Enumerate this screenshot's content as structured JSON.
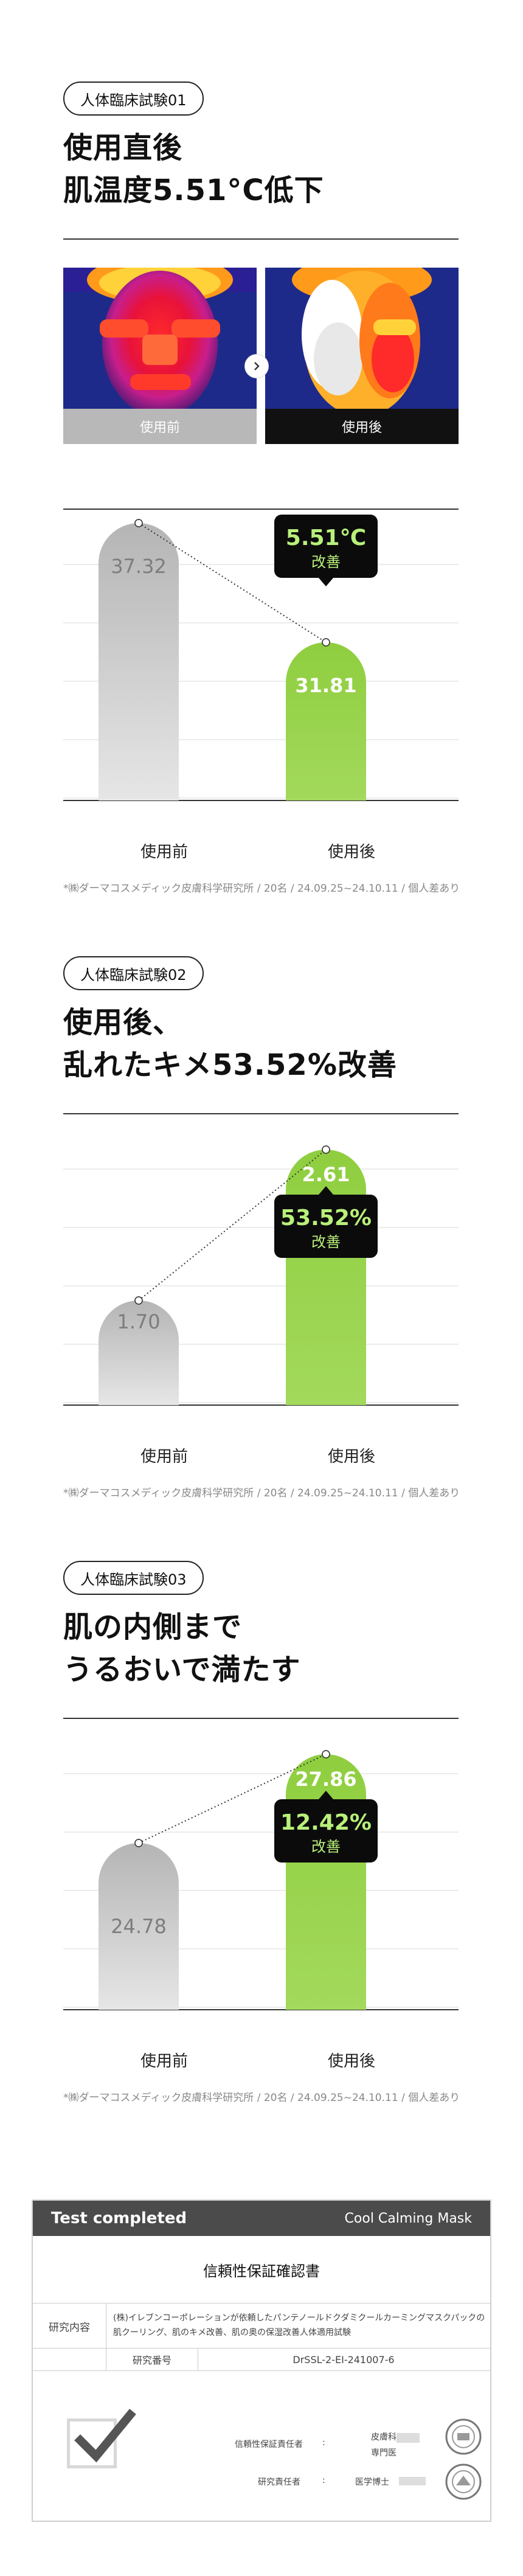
{
  "sections": [
    {
      "badge": "人体臨床試験01",
      "title_lines": [
        "使用直後",
        "肌温度5.51°C低下"
      ],
      "thermal": {
        "before_label": "使用前",
        "after_label": "使用後"
      },
      "chart": {
        "before_value": "37.32",
        "after_value": "31.81",
        "callout_value": "5.51℃",
        "callout_sub": "改善"
      },
      "note": "*㈱ダーマコスメディック皮膚科学研究所 / 20名 / 24.09.25~24.10.11 / 個人差あり"
    },
    {
      "badge": "人体臨床試験02",
      "title_lines": [
        "使用後、",
        "乱れたキメ53.52%改善"
      ],
      "chart": {
        "before_value": "1.70",
        "after_value": "2.61",
        "callout_value": "53.52%",
        "callout_sub": "改善"
      },
      "note": "*㈱ダーマコスメディック皮膚科学研究所 / 20名 / 24.09.25~24.10.11 / 個人差あり"
    },
    {
      "badge": "人体臨床試験03",
      "title_lines": [
        "肌の内側まで",
        "うるおいで満たす"
      ],
      "chart": {
        "before_value": "24.78",
        "after_value": "27.86",
        "callout_value": "12.42%",
        "callout_sub": "改善"
      },
      "note": "*㈱ダーマコスメディック皮膚科学研究所 / 20名 / 24.09.25~24.10.11 / 個人差あり"
    }
  ],
  "x_labels": {
    "before": "使用前",
    "after": "使用後"
  },
  "chart_data": [
    {
      "type": "bar",
      "categories": [
        "使用前",
        "使用後"
      ],
      "values": [
        37.32,
        31.81
      ]
    },
    {
      "type": "bar",
      "categories": [
        "使用前",
        "使用後"
      ],
      "values": [
        1.7,
        2.61
      ]
    },
    {
      "type": "bar",
      "categories": [
        "使用前",
        "使用後"
      ],
      "values": [
        24.78,
        27.86
      ]
    }
  ],
  "certificate": {
    "header_left": "Test completed",
    "header_right": "Cool Calming Mask",
    "title": "信頼性保証確認書",
    "content_label": "研究内容",
    "content_text_1": "(株)イレブンコーポレーションが依頼したパンテノールドクダミクールカーミングマスクパックの",
    "content_text_2": "肌クーリング、肌のキメ改善、肌の奥の保湿改善人体適用試験",
    "number_label": "研究番号",
    "number_value": "DrSSL-2-EI-241007-6",
    "qa_label": "信頼性保証責任者",
    "qa_value_1": "皮膚科",
    "qa_value_2": "専門医",
    "researcher_label": "研究責任者",
    "researcher_value": "医学博士",
    "colon": ":"
  },
  "colors": {
    "green": "#8fcc45",
    "gray": "#c6c6c6",
    "callout_text": "#b8f07a"
  }
}
